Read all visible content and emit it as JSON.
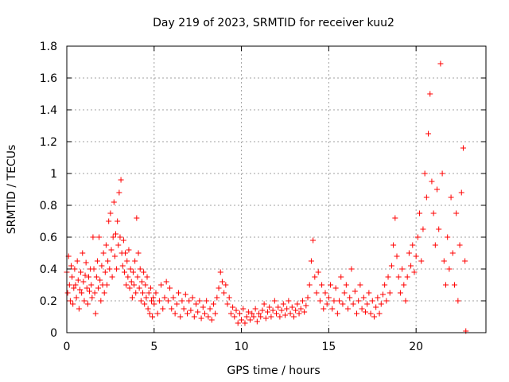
{
  "chart_data": {
    "type": "scatter",
    "title": "Day 219 of 2023, SRMTID for receiver kuu2",
    "xlabel": "GPS time / hours",
    "ylabel": "SRMTID / TECUs",
    "xlim": [
      0,
      24
    ],
    "ylim": [
      0,
      1.8
    ],
    "x_ticks": [
      "0",
      "5",
      "10",
      "15",
      "20"
    ],
    "y_ticks": [
      "0",
      "0.2",
      "0.4",
      "0.6",
      "0.8",
      "1",
      "1.2",
      "1.4",
      "1.6",
      "1.8"
    ],
    "x_tick_values": [
      0,
      5,
      10,
      15,
      20
    ],
    "y_tick_values": [
      0,
      0.2,
      0.4,
      0.6,
      0.8,
      1.0,
      1.2,
      1.4,
      1.6,
      1.8
    ],
    "grid": true,
    "marker": "+",
    "marker_color": "#ff0000",
    "series": [
      {
        "name": "SRMTID",
        "points": [
          [
            0.0,
            0.38
          ],
          [
            0.05,
            0.25
          ],
          [
            0.1,
            0.48
          ],
          [
            0.15,
            0.3
          ],
          [
            0.2,
            0.2
          ],
          [
            0.25,
            0.42
          ],
          [
            0.3,
            0.35
          ],
          [
            0.35,
            0.18
          ],
          [
            0.4,
            0.28
          ],
          [
            0.45,
            0.4
          ],
          [
            0.5,
            0.3
          ],
          [
            0.55,
            0.22
          ],
          [
            0.6,
            0.45
          ],
          [
            0.65,
            0.33
          ],
          [
            0.7,
            0.15
          ],
          [
            0.75,
            0.27
          ],
          [
            0.8,
            0.38
          ],
          [
            0.85,
            0.25
          ],
          [
            0.9,
            0.5
          ],
          [
            0.95,
            0.32
          ],
          [
            1.0,
            0.2
          ],
          [
            1.05,
            0.36
          ],
          [
            1.1,
            0.44
          ],
          [
            1.15,
            0.28
          ],
          [
            1.2,
            0.18
          ],
          [
            1.25,
            0.35
          ],
          [
            1.3,
            0.26
          ],
          [
            1.35,
            0.4
          ],
          [
            1.4,
            0.3
          ],
          [
            1.45,
            0.22
          ],
          [
            1.5,
            0.6
          ],
          [
            1.55,
            0.4
          ],
          [
            1.6,
            0.25
          ],
          [
            1.65,
            0.12
          ],
          [
            1.7,
            0.35
          ],
          [
            1.75,
            0.45
          ],
          [
            1.8,
            0.28
          ],
          [
            1.85,
            0.6
          ],
          [
            1.9,
            0.33
          ],
          [
            1.95,
            0.2
          ],
          [
            2.0,
            0.42
          ],
          [
            2.05,
            0.3
          ],
          [
            2.1,
            0.5
          ],
          [
            2.15,
            0.25
          ],
          [
            2.2,
            0.38
          ],
          [
            2.25,
            0.55
          ],
          [
            2.3,
            0.3
          ],
          [
            2.35,
            0.45
          ],
          [
            2.4,
            0.7
          ],
          [
            2.45,
            0.4
          ],
          [
            2.5,
            0.75
          ],
          [
            2.55,
            0.52
          ],
          [
            2.6,
            0.35
          ],
          [
            2.65,
            0.6
          ],
          [
            2.7,
            0.82
          ],
          [
            2.75,
            0.48
          ],
          [
            2.8,
            0.62
          ],
          [
            2.85,
            0.4
          ],
          [
            2.9,
            0.7
          ],
          [
            2.95,
            0.55
          ],
          [
            3.0,
            0.88
          ],
          [
            3.05,
            0.6
          ],
          [
            3.1,
            0.96
          ],
          [
            3.15,
            0.5
          ],
          [
            3.2,
            0.42
          ],
          [
            3.25,
            0.58
          ],
          [
            3.3,
            0.38
          ],
          [
            3.35,
            0.5
          ],
          [
            3.4,
            0.3
          ],
          [
            3.45,
            0.45
          ],
          [
            3.5,
            0.35
          ],
          [
            3.55,
            0.52
          ],
          [
            3.6,
            0.28
          ],
          [
            3.65,
            0.4
          ],
          [
            3.7,
            0.32
          ],
          [
            3.75,
            0.22
          ],
          [
            3.8,
            0.38
          ],
          [
            3.85,
            0.3
          ],
          [
            3.9,
            0.45
          ],
          [
            3.95,
            0.25
          ],
          [
            4.0,
            0.72
          ],
          [
            4.05,
            0.35
          ],
          [
            4.1,
            0.5
          ],
          [
            4.15,
            0.28
          ],
          [
            4.2,
            0.4
          ],
          [
            4.25,
            0.2
          ],
          [
            4.3,
            0.32
          ],
          [
            4.35,
            0.25
          ],
          [
            4.4,
            0.38
          ],
          [
            4.45,
            0.18
          ],
          [
            4.5,
            0.3
          ],
          [
            4.55,
            0.22
          ],
          [
            4.6,
            0.35
          ],
          [
            4.65,
            0.15
          ],
          [
            4.7,
            0.25
          ],
          [
            4.75,
            0.12
          ],
          [
            4.8,
            0.28
          ],
          [
            4.85,
            0.2
          ],
          [
            4.9,
            0.1
          ],
          [
            4.95,
            0.22
          ],
          [
            5.0,
            0.18
          ],
          [
            5.1,
            0.25
          ],
          [
            5.2,
            0.12
          ],
          [
            5.3,
            0.2
          ],
          [
            5.4,
            0.3
          ],
          [
            5.5,
            0.15
          ],
          [
            5.6,
            0.22
          ],
          [
            5.7,
            0.32
          ],
          [
            5.8,
            0.2
          ],
          [
            5.9,
            0.28
          ],
          [
            6.0,
            0.15
          ],
          [
            6.1,
            0.22
          ],
          [
            6.2,
            0.12
          ],
          [
            6.3,
            0.18
          ],
          [
            6.4,
            0.25
          ],
          [
            6.5,
            0.1
          ],
          [
            6.6,
            0.2
          ],
          [
            6.7,
            0.15
          ],
          [
            6.8,
            0.24
          ],
          [
            6.9,
            0.12
          ],
          [
            7.0,
            0.2
          ],
          [
            7.1,
            0.14
          ],
          [
            7.2,
            0.22
          ],
          [
            7.3,
            0.1
          ],
          [
            7.4,
            0.18
          ],
          [
            7.5,
            0.13
          ],
          [
            7.6,
            0.2
          ],
          [
            7.7,
            0.09
          ],
          [
            7.8,
            0.16
          ],
          [
            7.9,
            0.12
          ],
          [
            8.0,
            0.2
          ],
          [
            8.1,
            0.1
          ],
          [
            8.2,
            0.15
          ],
          [
            8.3,
            0.08
          ],
          [
            8.4,
            0.18
          ],
          [
            8.5,
            0.12
          ],
          [
            8.6,
            0.22
          ],
          [
            8.7,
            0.28
          ],
          [
            8.8,
            0.38
          ],
          [
            8.9,
            0.32
          ],
          [
            9.0,
            0.25
          ],
          [
            9.1,
            0.3
          ],
          [
            9.2,
            0.18
          ],
          [
            9.3,
            0.22
          ],
          [
            9.4,
            0.12
          ],
          [
            9.5,
            0.16
          ],
          [
            9.6,
            0.1
          ],
          [
            9.7,
            0.14
          ],
          [
            9.8,
            0.06
          ],
          [
            9.9,
            0.12
          ],
          [
            10.0,
            0.08
          ],
          [
            10.1,
            0.15
          ],
          [
            10.2,
            0.06
          ],
          [
            10.3,
            0.1
          ],
          [
            10.4,
            0.13
          ],
          [
            10.5,
            0.08
          ],
          [
            10.6,
            0.12
          ],
          [
            10.7,
            0.1
          ],
          [
            10.8,
            0.15
          ],
          [
            10.9,
            0.07
          ],
          [
            11.0,
            0.12
          ],
          [
            11.1,
            0.1
          ],
          [
            11.2,
            0.14
          ],
          [
            11.3,
            0.18
          ],
          [
            11.4,
            0.09
          ],
          [
            11.5,
            0.13
          ],
          [
            11.6,
            0.16
          ],
          [
            11.7,
            0.1
          ],
          [
            11.8,
            0.14
          ],
          [
            11.9,
            0.2
          ],
          [
            12.0,
            0.12
          ],
          [
            12.1,
            0.16
          ],
          [
            12.2,
            0.1
          ],
          [
            12.3,
            0.14
          ],
          [
            12.4,
            0.18
          ],
          [
            12.5,
            0.11
          ],
          [
            12.6,
            0.15
          ],
          [
            12.7,
            0.2
          ],
          [
            12.8,
            0.12
          ],
          [
            12.9,
            0.16
          ],
          [
            13.0,
            0.1
          ],
          [
            13.1,
            0.14
          ],
          [
            13.2,
            0.18
          ],
          [
            13.3,
            0.12
          ],
          [
            13.4,
            0.15
          ],
          [
            13.5,
            0.2
          ],
          [
            13.6,
            0.13
          ],
          [
            13.7,
            0.17
          ],
          [
            13.8,
            0.22
          ],
          [
            13.9,
            0.3
          ],
          [
            14.0,
            0.45
          ],
          [
            14.1,
            0.58
          ],
          [
            14.2,
            0.35
          ],
          [
            14.3,
            0.25
          ],
          [
            14.4,
            0.38
          ],
          [
            14.5,
            0.2
          ],
          [
            14.6,
            0.3
          ],
          [
            14.7,
            0.15
          ],
          [
            14.8,
            0.25
          ],
          [
            14.9,
            0.18
          ],
          [
            15.0,
            0.22
          ],
          [
            15.1,
            0.3
          ],
          [
            15.2,
            0.15
          ],
          [
            15.3,
            0.2
          ],
          [
            15.4,
            0.28
          ],
          [
            15.5,
            0.12
          ],
          [
            15.6,
            0.2
          ],
          [
            15.7,
            0.35
          ],
          [
            15.8,
            0.18
          ],
          [
            15.9,
            0.25
          ],
          [
            16.0,
            0.3
          ],
          [
            16.1,
            0.15
          ],
          [
            16.2,
            0.22
          ],
          [
            16.3,
            0.4
          ],
          [
            16.4,
            0.18
          ],
          [
            16.5,
            0.26
          ],
          [
            16.6,
            0.12
          ],
          [
            16.7,
            0.2
          ],
          [
            16.8,
            0.3
          ],
          [
            16.9,
            0.15
          ],
          [
            17.0,
            0.22
          ],
          [
            17.1,
            0.13
          ],
          [
            17.2,
            0.18
          ],
          [
            17.3,
            0.25
          ],
          [
            17.4,
            0.12
          ],
          [
            17.5,
            0.2
          ],
          [
            17.6,
            0.1
          ],
          [
            17.7,
            0.16
          ],
          [
            17.8,
            0.22
          ],
          [
            17.9,
            0.12
          ],
          [
            18.0,
            0.18
          ],
          [
            18.1,
            0.24
          ],
          [
            18.2,
            0.3
          ],
          [
            18.3,
            0.2
          ],
          [
            18.4,
            0.35
          ],
          [
            18.5,
            0.25
          ],
          [
            18.6,
            0.42
          ],
          [
            18.7,
            0.55
          ],
          [
            18.8,
            0.72
          ],
          [
            18.9,
            0.48
          ],
          [
            19.0,
            0.35
          ],
          [
            19.1,
            0.25
          ],
          [
            19.2,
            0.4
          ],
          [
            19.3,
            0.3
          ],
          [
            19.4,
            0.2
          ],
          [
            19.5,
            0.35
          ],
          [
            19.6,
            0.5
          ],
          [
            19.7,
            0.42
          ],
          [
            19.8,
            0.55
          ],
          [
            19.9,
            0.38
          ],
          [
            20.0,
            0.48
          ],
          [
            20.1,
            0.6
          ],
          [
            20.2,
            0.75
          ],
          [
            20.3,
            0.45
          ],
          [
            20.4,
            0.65
          ],
          [
            20.5,
            1.0
          ],
          [
            20.6,
            0.85
          ],
          [
            20.7,
            1.25
          ],
          [
            20.8,
            1.5
          ],
          [
            20.9,
            0.95
          ],
          [
            21.0,
            0.75
          ],
          [
            21.1,
            0.55
          ],
          [
            21.2,
            0.9
          ],
          [
            21.3,
            0.65
          ],
          [
            21.4,
            1.69
          ],
          [
            21.5,
            1.0
          ],
          [
            21.6,
            0.45
          ],
          [
            21.7,
            0.3
          ],
          [
            21.8,
            0.6
          ],
          [
            21.9,
            0.4
          ],
          [
            22.0,
            0.85
          ],
          [
            22.1,
            0.5
          ],
          [
            22.2,
            0.3
          ],
          [
            22.3,
            0.75
          ],
          [
            22.4,
            0.2
          ],
          [
            22.5,
            0.55
          ],
          [
            22.6,
            0.88
          ],
          [
            22.7,
            1.16
          ],
          [
            22.8,
            0.45
          ],
          [
            22.85,
            0.01
          ]
        ]
      }
    ]
  }
}
